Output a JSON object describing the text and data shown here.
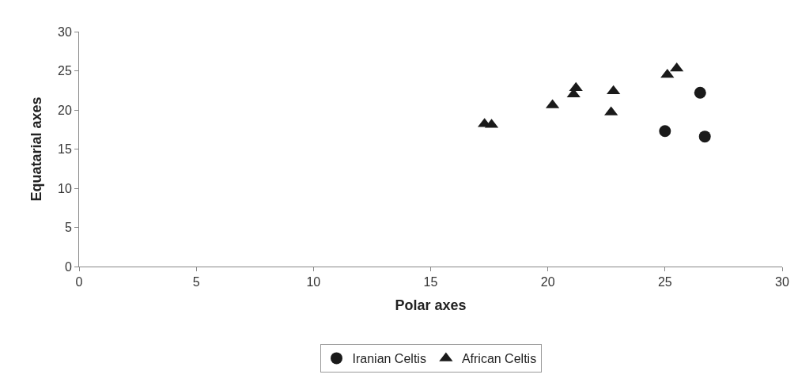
{
  "chart_data": {
    "type": "scatter",
    "xlabel": "Polar axes",
    "ylabel": "Equatarial axes",
    "xlim": [
      0,
      30
    ],
    "xticks": [
      0,
      5,
      10,
      15,
      20,
      25,
      30
    ],
    "ylim": [
      0,
      30
    ],
    "yticks": [
      0,
      5,
      10,
      15,
      20,
      25,
      30
    ],
    "legend": "bottom",
    "series": [
      {
        "name": "Iranian Celtis",
        "color": "#1a1a1a",
        "marker": "circle",
        "x": [
          26.5,
          25.0,
          26.7
        ],
        "values": [
          22.2,
          17.3,
          16.6
        ]
      },
      {
        "name": "African Celtis",
        "color": "#1a1a1a",
        "marker": "triangle",
        "x": [
          17.3,
          17.6,
          20.2,
          21.2,
          21.1,
          22.8,
          22.7,
          25.1,
          25.5
        ],
        "values": [
          18.2,
          18.1,
          20.6,
          22.8,
          22.0,
          22.4,
          19.7,
          24.5,
          25.3
        ]
      }
    ]
  }
}
